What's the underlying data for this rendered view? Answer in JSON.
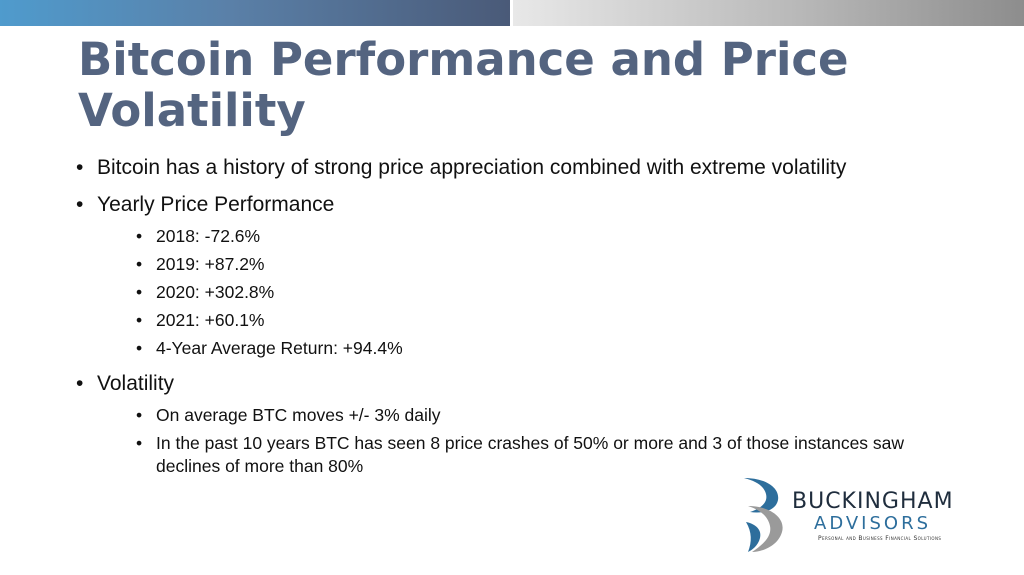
{
  "slide": {
    "title": "Bitcoin Performance and Price Volatility",
    "bullets": [
      {
        "text": "Bitcoin has a history of strong price appreciation combined with extreme volatility",
        "sub": []
      },
      {
        "text": "Yearly Price Performance",
        "sub": [
          "2018: -72.6%",
          "2019: +87.2%",
          "2020: +302.8%",
          "2021: +60.1%",
          "4-Year Average Return: +94.4%"
        ]
      },
      {
        "text": "Volatility",
        "sub": [
          "On average BTC moves +/- 3% daily",
          "In the past 10 years BTC has seen 8 price crashes of 50% or more and 3 of those instances saw declines of more than 80%"
        ]
      }
    ]
  },
  "logo": {
    "name": "BUCKINGHAM",
    "sub": "ADVISORS",
    "tagline": "Personal and Business Financial Solutions"
  },
  "colors": {
    "title": "#546480",
    "logo_blue": "#2d6e9c",
    "logo_gray": "#9a9a9a"
  }
}
